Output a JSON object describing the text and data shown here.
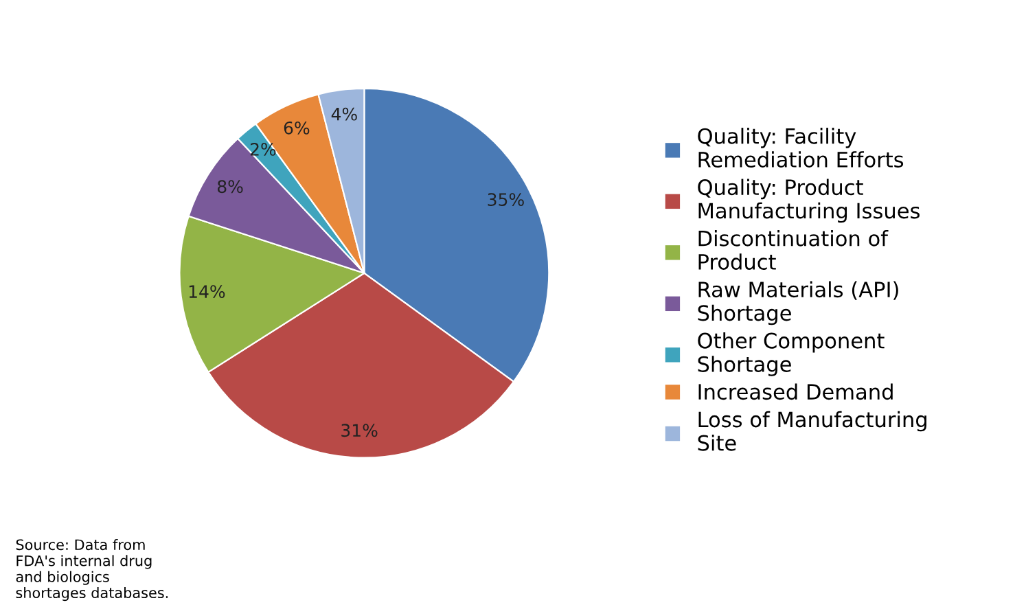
{
  "chart_data": {
    "type": "pie",
    "categories": [
      "Quality: Facility Remediation Efforts",
      "Quality: Product Manufacturing Issues",
      "Discontinuation of Product",
      "Raw Materials (API) Shortage",
      "Other Component Shortage",
      "Increased Demand",
      "Loss of Manufacturing Site"
    ],
    "values": [
      35,
      31,
      14,
      8,
      2,
      6,
      4
    ],
    "value_labels": [
      "35%",
      "31%",
      "14%",
      "8%",
      "2%",
      "6%",
      "4%"
    ],
    "colors": [
      "#4a7ab5",
      "#b84a47",
      "#93b447",
      "#7a5a9a",
      "#3fa4bd",
      "#e8883a",
      "#9db6dc"
    ],
    "legend": "right",
    "annotations": [
      "Source: Data from FDA's internal drug and biologics shortages databases."
    ]
  }
}
